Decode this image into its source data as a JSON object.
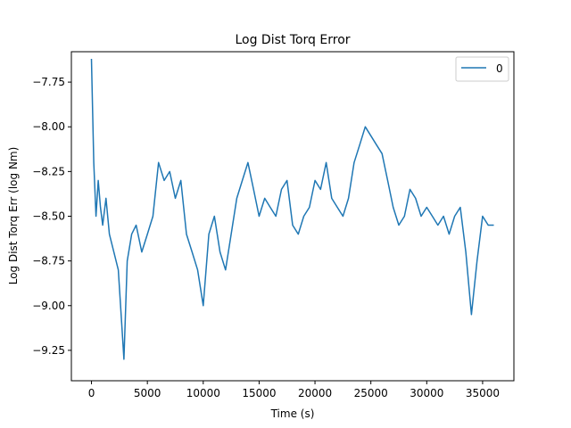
{
  "chart_data": {
    "type": "line",
    "title": "Log Dist Torq Error",
    "xlabel": "Time (s)",
    "ylabel": "Log Dist Torq Err (log Nm)",
    "xlim": [
      -1800,
      37800
    ],
    "ylim": [
      -9.42,
      -7.58
    ],
    "xticks": [
      0,
      5000,
      10000,
      15000,
      20000,
      25000,
      30000,
      35000
    ],
    "yticks": [
      -9.25,
      -9.0,
      -8.75,
      -8.5,
      -8.25,
      -8.0,
      -7.75
    ],
    "xtick_labels": [
      "0",
      "5000",
      "10000",
      "15000",
      "20000",
      "25000",
      "30000",
      "35000"
    ],
    "ytick_labels": [
      "−9.25",
      "−9.00",
      "−8.75",
      "−8.50",
      "−8.25",
      "−8.00",
      "−7.75"
    ],
    "grid": false,
    "legend": "upper right",
    "series": [
      {
        "name": "0",
        "color": "#1f77b4",
        "x": [
          0,
          200,
          400,
          600,
          800,
          1000,
          1300,
          1600,
          2000,
          2400,
          2700,
          2900,
          3200,
          3600,
          4000,
          4500,
          5000,
          5500,
          6000,
          6500,
          7000,
          7500,
          8000,
          8500,
          9000,
          9500,
          10000,
          10500,
          11000,
          11500,
          12000,
          12500,
          13000,
          13500,
          14000,
          14500,
          15000,
          15500,
          16000,
          16500,
          17000,
          17500,
          18000,
          18500,
          19000,
          19500,
          20000,
          20500,
          21000,
          21500,
          22000,
          22500,
          23000,
          23500,
          24000,
          24500,
          25000,
          25500,
          26000,
          26500,
          27000,
          27500,
          28000,
          28500,
          29000,
          29500,
          30000,
          30500,
          31000,
          31500,
          32000,
          32500,
          33000,
          33500,
          34000,
          34500,
          35000,
          35500,
          36000
        ],
        "values": [
          -7.62,
          -8.2,
          -8.5,
          -8.3,
          -8.45,
          -8.55,
          -8.4,
          -8.6,
          -8.7,
          -8.8,
          -9.1,
          -9.3,
          -8.75,
          -8.6,
          -8.55,
          -8.7,
          -8.6,
          -8.5,
          -8.2,
          -8.3,
          -8.25,
          -8.4,
          -8.3,
          -8.6,
          -8.7,
          -8.8,
          -9.0,
          -8.6,
          -8.5,
          -8.7,
          -8.8,
          -8.6,
          -8.4,
          -8.3,
          -8.2,
          -8.35,
          -8.5,
          -8.4,
          -8.45,
          -8.5,
          -8.35,
          -8.3,
          -8.55,
          -8.6,
          -8.5,
          -8.45,
          -8.3,
          -8.35,
          -8.2,
          -8.4,
          -8.45,
          -8.5,
          -8.4,
          -8.2,
          -8.1,
          -8.0,
          -8.05,
          -8.1,
          -8.15,
          -8.3,
          -8.45,
          -8.55,
          -8.5,
          -8.35,
          -8.4,
          -8.5,
          -8.45,
          -8.5,
          -8.55,
          -8.5,
          -8.6,
          -8.5,
          -8.45,
          -8.7,
          -9.05,
          -8.75,
          -8.5,
          -8.55,
          -8.55
        ]
      }
    ]
  }
}
